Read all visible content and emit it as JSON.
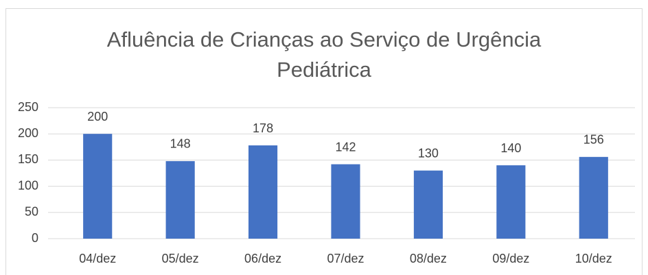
{
  "chart_data": {
    "type": "bar",
    "title": "Afluência de Crianças ao Serviço de Urgência Pediátrica",
    "categories": [
      "04/dez",
      "05/dez",
      "06/dez",
      "07/dez",
      "08/dez",
      "09/dez",
      "10/dez"
    ],
    "values": [
      200,
      148,
      178,
      142,
      130,
      140,
      156
    ],
    "color": "#4472c4",
    "ylim": [
      0,
      250
    ],
    "yticks": [
      0,
      50,
      100,
      150,
      200,
      250
    ],
    "grid": true
  }
}
